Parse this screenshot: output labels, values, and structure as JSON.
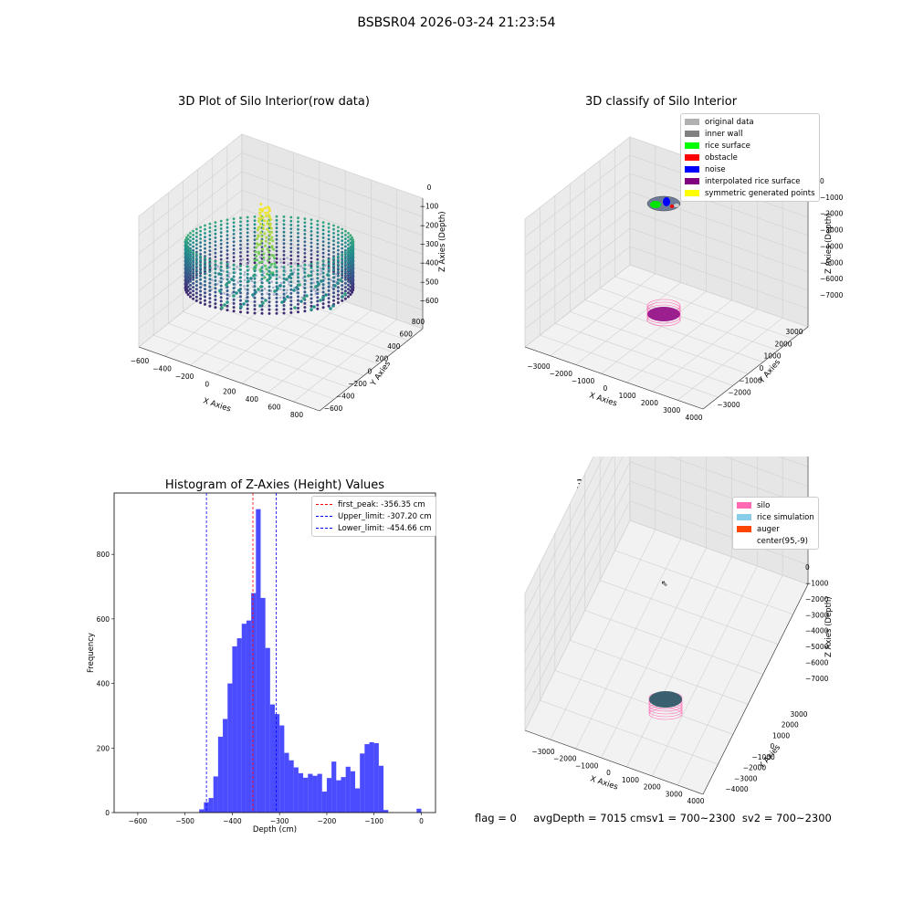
{
  "suptitle": "BSBSR04 2026-03-24 21:23:54",
  "footer": "flag = 0     avgDepth = 7015 cmsv1 = 700~2300  sv2 = 700~2300",
  "chart_data": [
    {
      "type": "scatter",
      "projection": "3d",
      "title": "3D Plot of Silo Interior(row data)",
      "xlabel": "X Axies",
      "ylabel": "Y Axies",
      "zlabel": "Z Axies (Depth)",
      "xticks": [
        "−600",
        "−400",
        "−200",
        "0",
        "200",
        "400",
        "600",
        "800"
      ],
      "yticks": [
        "−600",
        "−400",
        "−200",
        "0",
        "200",
        "400",
        "600",
        "800"
      ],
      "zticks": [
        "0",
        "−100",
        "−200",
        "−300",
        "−400",
        "−500",
        "−600"
      ],
      "xlim": [
        -600,
        800
      ],
      "ylim": [
        -600,
        800
      ],
      "zlim": [
        -650,
        0
      ],
      "colormap": "viridis"
    },
    {
      "type": "scatter",
      "projection": "3d",
      "title": "3D classify of Silo Interior",
      "xlabel": "X Axies",
      "ylabel": "Y Axies",
      "zlabel": "Z Axies (Depth)",
      "xticks": [
        "−3000",
        "−2000",
        "−1000",
        "0",
        "1000",
        "2000",
        "3000",
        "4000"
      ],
      "yticks": [
        "−3000",
        "−2000",
        "−1000",
        "0",
        "1000",
        "2000",
        "3000"
      ],
      "zticks": [
        "0",
        "−1000",
        "−2000",
        "−3000",
        "−4000",
        "−5000",
        "−6000",
        "−7000"
      ],
      "legend_position": "top-right",
      "legend": [
        {
          "label": "original data",
          "color": "#b0b0b0"
        },
        {
          "label": "inner wall",
          "color": "#808080"
        },
        {
          "label": "rice surface",
          "color": "#00ff00"
        },
        {
          "label": "obstacle",
          "color": "#ff0000"
        },
        {
          "label": "noise",
          "color": "#0000ff"
        },
        {
          "label": "interpolated rice surface",
          "color": "#800080"
        },
        {
          "label": "symmetric generated points",
          "color": "#ffff00"
        }
      ]
    },
    {
      "type": "bar",
      "title": "Histogram of Z-Axies (Height) Values",
      "xlabel": "Depth (cm)",
      "ylabel": "Frequency",
      "xlim": [
        -650,
        30
      ],
      "ylim": [
        0,
        990
      ],
      "xticks": [
        -600,
        -500,
        -400,
        -300,
        -200,
        -100,
        0
      ],
      "yticks": [
        0,
        200,
        400,
        600,
        800
      ],
      "bin_width": 10,
      "bin_starts": [
        -470,
        -460,
        -450,
        -440,
        -430,
        -420,
        -410,
        -400,
        -390,
        -380,
        -370,
        -360,
        -350,
        -340,
        -330,
        -320,
        -310,
        -300,
        -290,
        -280,
        -270,
        -260,
        -250,
        -240,
        -230,
        -220,
        -210,
        -200,
        -190,
        -180,
        -170,
        -160,
        -150,
        -140,
        -130,
        -120,
        -110,
        -100,
        -90,
        -80,
        -70,
        -60,
        -50,
        -40,
        -30,
        -20,
        -10,
        0
      ],
      "values": [
        10,
        32,
        45,
        112,
        235,
        290,
        400,
        515,
        540,
        585,
        595,
        680,
        940,
        665,
        510,
        335,
        305,
        270,
        185,
        162,
        140,
        122,
        108,
        120,
        114,
        120,
        65,
        107,
        158,
        100,
        110,
        142,
        128,
        75,
        183,
        212,
        218,
        215,
        145,
        8,
        0,
        0,
        0,
        0,
        0,
        0,
        12,
        0
      ],
      "bar_color": "#0000ff",
      "legend_position": "top-right",
      "vlines": [
        {
          "label": "first_peak: -356.35 cm",
          "x": -356.35,
          "color": "#ff0000"
        },
        {
          "label": "Upper_limit: -307.20 cm",
          "x": -307.2,
          "color": "#0000ff"
        },
        {
          "label": "Lower_limit: -454.66 cm",
          "x": -454.66,
          "color": "#0000ff"
        }
      ]
    },
    {
      "type": "scatter",
      "projection": "3d",
      "title": "3D simulation of Silo Interior",
      "xlabel": "X Axies",
      "ylabel": "Y Axies",
      "zlabel": "Z Axies (Depth)",
      "xticks": [
        "−3000",
        "−2000",
        "−1000",
        "0",
        "1000",
        "2000",
        "3000",
        "4000"
      ],
      "yticks": [
        "−4000",
        "−3000",
        "−2000",
        "−1000",
        "0",
        "1000",
        "2000",
        "3000"
      ],
      "zticks": [
        "0",
        "−1000",
        "−2000",
        "−3000",
        "−4000",
        "−5000",
        "−6000",
        "−7000"
      ],
      "legend_position": "top-right",
      "legend": [
        {
          "label": "silo",
          "color": "#ff69b4"
        },
        {
          "label": "rice simulation",
          "color": "#87ceeb"
        },
        {
          "label": "auger",
          "color": "#ff4500"
        },
        {
          "label": "center(95,-9)",
          "color": ""
        }
      ]
    }
  ]
}
